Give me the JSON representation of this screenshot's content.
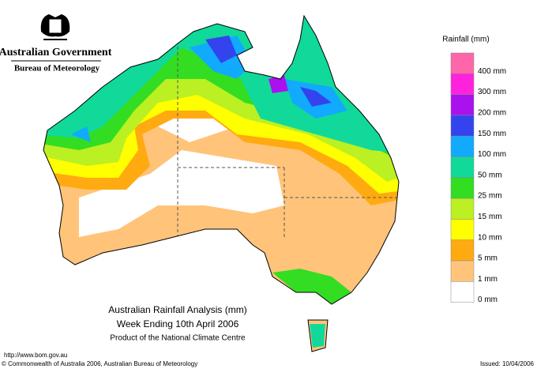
{
  "header": {
    "government": "Australian Government",
    "bureau": "Bureau of Meteorology"
  },
  "legend": {
    "title": "Rainfall (mm)",
    "items": [
      {
        "label": "400 mm",
        "color": "#ff66aa"
      },
      {
        "label": "300 mm",
        "color": "#ff22dd"
      },
      {
        "label": "200 mm",
        "color": "#aa11ee"
      },
      {
        "label": "150 mm",
        "color": "#3344ee"
      },
      {
        "label": "100 mm",
        "color": "#11aaff"
      },
      {
        "label": "50 mm",
        "color": "#11d99a"
      },
      {
        "label": "25 mm",
        "color": "#33dd22"
      },
      {
        "label": "15 mm",
        "color": "#bbf022"
      },
      {
        "label": "10 mm",
        "color": "#ffff00"
      },
      {
        "label": "5 mm",
        "color": "#ffaa11"
      },
      {
        "label": "1 mm",
        "color": "#ffc47a"
      },
      {
        "label": "0 mm",
        "color": "#ffffff"
      }
    ]
  },
  "map": {
    "title": "Australian Rainfall Analysis (mm)",
    "subtitle": "Week Ending 10th April 2006",
    "credit": "Product of the National Climate Centre"
  },
  "footer": {
    "url": "http://www.bom.gov.au",
    "copyright": "© Commonwealth of Australia 2006, Australian Bureau of Meteorology",
    "issued": "Issued: 10/04/2006"
  }
}
